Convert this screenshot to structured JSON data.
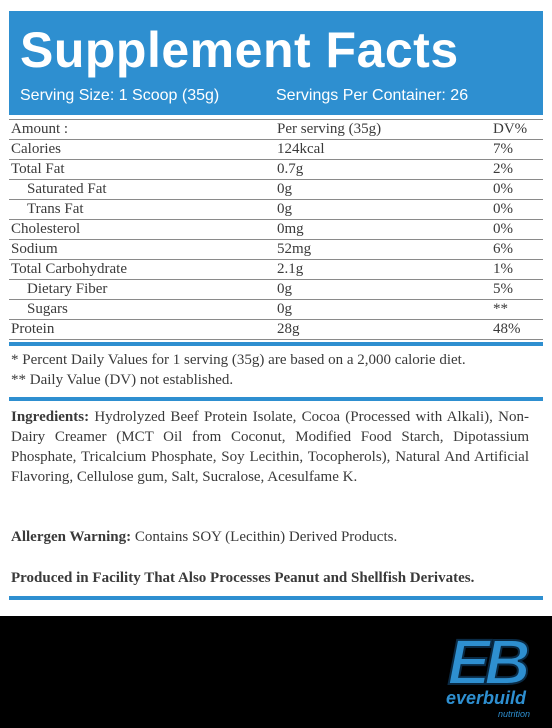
{
  "header": {
    "title": "Supplement Facts",
    "serving_size": "Serving Size: 1 Scoop (35g)",
    "servings_per_container": "Servings Per Container: 26"
  },
  "facts": {
    "columns": [
      "Amount :",
      "Per serving (35g)",
      "DV%"
    ],
    "rows": [
      {
        "name": "Calories",
        "amount": "124kcal",
        "dv": "7%"
      },
      {
        "name": "Total Fat",
        "amount": "0.7g",
        "dv": "2%"
      },
      {
        "name": "Saturated Fat",
        "amount": "0g",
        "dv": "0%"
      },
      {
        "name": "Trans Fat",
        "amount": "0g",
        "dv": "0%"
      },
      {
        "name": "Cholesterol",
        "amount": "0mg",
        "dv": "0%"
      },
      {
        "name": "Sodium",
        "amount": "52mg",
        "dv": "6%"
      },
      {
        "name": "Total Carbohydrate",
        "amount": "2.1g",
        "dv": "1%"
      },
      {
        "name": "Dietary Fiber",
        "amount": "0g",
        "dv": "5%"
      },
      {
        "name": "Sugars",
        "amount": "0g",
        "dv": "**"
      },
      {
        "name": "Protein",
        "amount": "28g",
        "dv": "48%"
      }
    ]
  },
  "notes": {
    "line1": "* Percent Daily Values for 1 serving (35g) are based on a 2,000 calorie diet.",
    "line2": "** Daily Value (DV) not established."
  },
  "ingredients": {
    "label": "Ingredients:",
    "text": "Hydrolyzed Beef Protein Isolate, Cocoa (Processed with Alkali), Non-Dairy Creamer (MCT Oil from Coconut, Modified Food Starch, Dipotassium Phosphate, Tricalcium Phosphate, Soy Lecithin, Tocopherols), Natural And Artificial Flavoring, Cellulose gum, Salt, Sucralose, Acesulfame K."
  },
  "allergen": {
    "label": "Allergen Warning:",
    "text": "Contains SOY (Lecithin) Derived Products."
  },
  "facility": "Produced in Facility That Also Processes Peanut and Shellfish Derivates.",
  "brand": {
    "monogram": "EB",
    "name": "everbuild",
    "tagline": "nutrition",
    "accent": "#2e8fd0"
  }
}
